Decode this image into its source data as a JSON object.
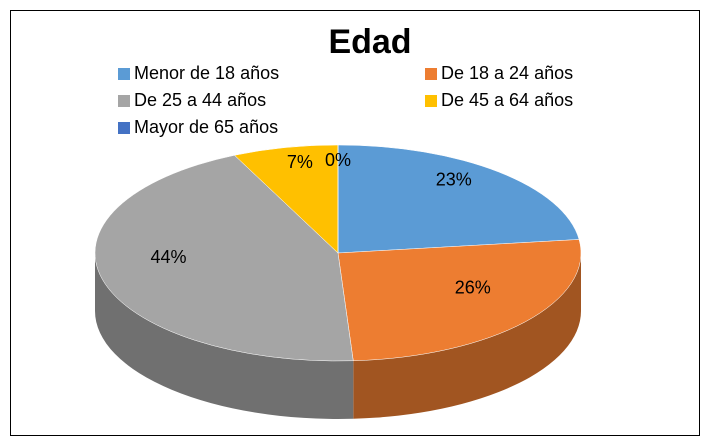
{
  "chart_data": {
    "type": "pie",
    "title": "Edad",
    "categories": [
      "Menor de 18 años",
      "De 18 a 24 años",
      "De 25 a 44 años",
      "De 45 a 64 años",
      "Mayor de 65 años"
    ],
    "values": [
      23,
      26,
      44,
      7,
      0
    ],
    "value_labels": [
      "23%",
      "26%",
      "44%",
      "7%",
      "0%"
    ],
    "colors": [
      "#5b9bd5",
      "#ed7d31",
      "#a5a5a5",
      "#ffc000",
      "#4472c4"
    ],
    "legend": "top"
  }
}
